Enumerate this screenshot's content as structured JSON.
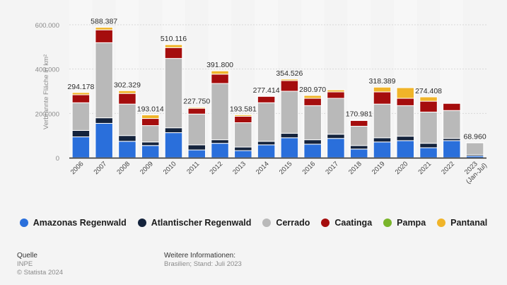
{
  "chart_data": {
    "type": "bar",
    "stacked": true,
    "title": "",
    "xlabel": "",
    "ylabel": "Verbrannte Fläche in km²",
    "ylim": [
      0,
      600000
    ],
    "yticks": [
      0,
      200000,
      400000,
      600000
    ],
    "ytick_labels": [
      "0",
      "200.000",
      "400.000",
      "600.000"
    ],
    "grid": true,
    "legend_position": "bottom",
    "categories": [
      "2006",
      "2007",
      "2008",
      "2009",
      "2010",
      "2011",
      "2012",
      "2013",
      "2014",
      "2015",
      "2016",
      "2017",
      "2018",
      "2019",
      "2020",
      "2021",
      "2022",
      "2023 (Jan-Jul)"
    ],
    "category_lines": [
      [
        "2006"
      ],
      [
        "2007"
      ],
      [
        "2008"
      ],
      [
        "2009"
      ],
      [
        "2010"
      ],
      [
        "2011"
      ],
      [
        "2012"
      ],
      [
        "2013"
      ],
      [
        "2014"
      ],
      [
        "2015"
      ],
      [
        "2016"
      ],
      [
        "2017"
      ],
      [
        "2018"
      ],
      [
        "2019"
      ],
      [
        "2020"
      ],
      [
        "2021"
      ],
      [
        "2022"
      ],
      [
        "2023",
        "(Jan-Jul)"
      ]
    ],
    "totals_labels": [
      "294.178",
      "588.387",
      "302.329",
      "193.014",
      "510.116",
      "227.750",
      "391.800",
      "193.581",
      "277.414",
      "354.526",
      "280.970",
      "",
      "170.981",
      "318.389",
      "",
      "274.408",
      "",
      "68.960"
    ],
    "series": [
      {
        "name": "Amazonas Regenwald",
        "color": "#2a6fdb",
        "values": [
          94000,
          155000,
          74000,
          55000,
          113000,
          35000,
          65000,
          32000,
          58000,
          90000,
          61000,
          87000,
          39000,
          71000,
          77000,
          45000,
          77000,
          8000
        ]
      },
      {
        "name": "Atlantischer Regenwald",
        "color": "#14233c",
        "values": [
          29000,
          25000,
          26000,
          16000,
          22000,
          23000,
          16000,
          16000,
          16000,
          20000,
          20000,
          19000,
          16000,
          19000,
          20000,
          20000,
          10000,
          6000
        ]
      },
      {
        "name": "Cerrado",
        "color": "#b9b9b9",
        "values": [
          125000,
          339000,
          142000,
          74000,
          313000,
          139000,
          254000,
          110000,
          174000,
          190000,
          154000,
          162000,
          87000,
          152000,
          138000,
          141000,
          126000,
          53000
        ]
      },
      {
        "name": "Caatinga",
        "color": "#a50d0d",
        "values": [
          36000,
          58000,
          48000,
          32000,
          49000,
          26000,
          42000,
          29000,
          29000,
          48000,
          33000,
          29000,
          26000,
          55000,
          33000,
          49000,
          32000,
          1000
        ]
      },
      {
        "name": "Pampa",
        "color": "#7ab52b",
        "values": [
          0,
          0,
          0,
          0,
          0,
          0,
          0,
          0,
          0,
          0,
          0,
          0,
          0,
          0,
          0,
          0,
          0,
          0
        ]
      },
      {
        "name": "Pantanal",
        "color": "#f0b429",
        "values": [
          10178,
          11387,
          12329,
          16014,
          13116,
          4750,
          14800,
          6581,
          414,
          6526,
          12970,
          9000,
          2981,
          21389,
          48000,
          19408,
          0,
          960
        ]
      }
    ]
  },
  "footer": {
    "source_heading": "Quelle",
    "source": "INPE",
    "copyright": "© Statista 2024",
    "info_heading": "Weitere Informationen:",
    "info": "Brasilien; Stand: Juli 2023"
  }
}
